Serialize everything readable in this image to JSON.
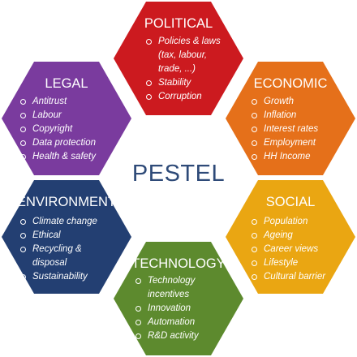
{
  "center": {
    "title": "PESTEL"
  },
  "colors": {
    "political": "#cc1a1f",
    "economic": "#e5701a",
    "social": "#eaa612",
    "technology": "#5d8a2e",
    "environment": "#233f72",
    "legal": "#7a3b9e",
    "center_text": "#2e4a78"
  },
  "political": {
    "title": "POLITICAL",
    "items": [
      "Policies & laws",
      "(tax, labour,",
      "trade, ...)",
      "Stability",
      "Corruption"
    ]
  },
  "economic": {
    "title": "ECONOMIC",
    "items": [
      "Growth",
      "Inflation",
      "Interest rates",
      "Employment",
      "HH Income"
    ]
  },
  "social": {
    "title": "SOCIAL",
    "items": [
      "Population",
      "Ageing",
      "Career views",
      "Lifestyle",
      "Cultural barrier"
    ]
  },
  "technology": {
    "title": "TECHNOLOGY",
    "items": [
      "Technology",
      "incentives",
      "Innovation",
      "Automation",
      "R&D activity"
    ]
  },
  "environment": {
    "title": "ENVIRONMENT",
    "items": [
      "Climate change",
      "Ethical",
      "Recycling &",
      "disposal",
      "Sustainability"
    ]
  },
  "legal": {
    "title": "LEGAL",
    "items": [
      "Antitrust",
      "Labour",
      "Copyright",
      "Data protection",
      "Health & safety"
    ]
  }
}
